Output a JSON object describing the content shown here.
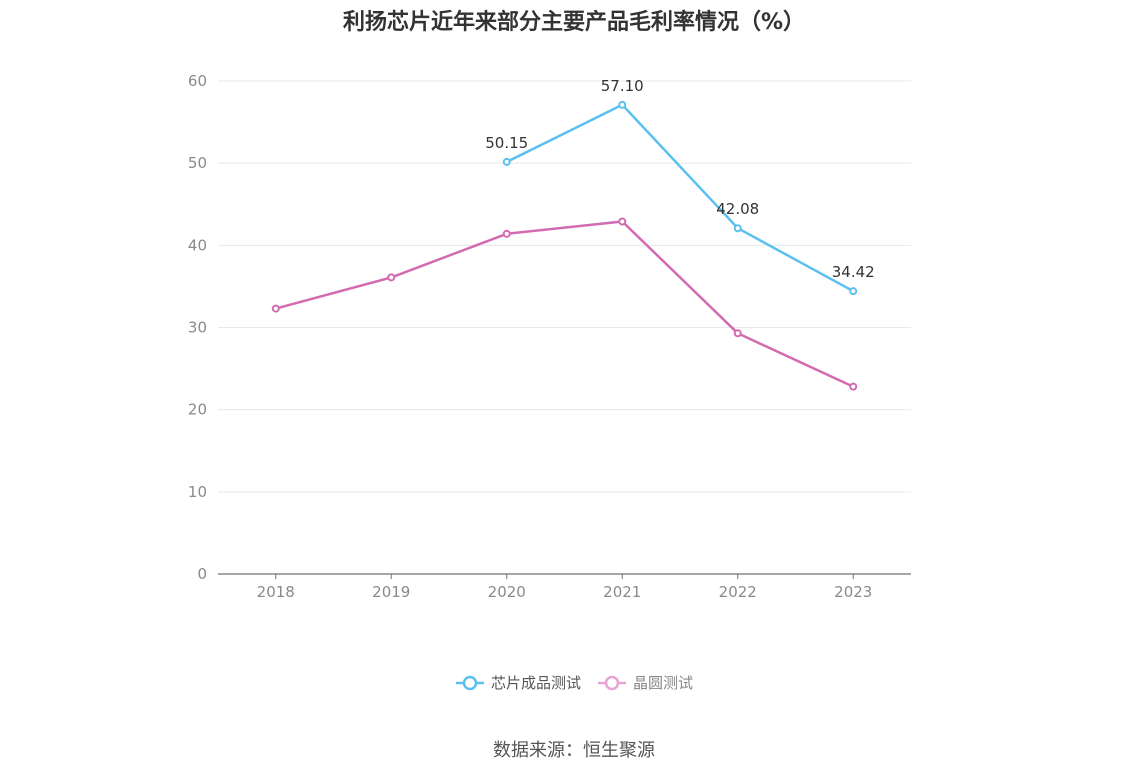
{
  "chart_data": {
    "type": "line",
    "title": "利扬芯片近年来部分主要产品毛利率情况（%）",
    "categories": [
      "2018",
      "2019",
      "2020",
      "2021",
      "2022",
      "2023"
    ],
    "ylim": [
      0,
      60
    ],
    "yticks": [
      0,
      10,
      20,
      30,
      40,
      50,
      60
    ],
    "grid": true,
    "legend_position": "bottom",
    "series": [
      {
        "name": "芯片成品测试",
        "color": "#5bc0f0",
        "values": [
          null,
          null,
          50.15,
          57.1,
          42.08,
          34.42
        ],
        "labels": [
          "",
          "",
          "50.15",
          "57.10",
          "42.08",
          "34.42"
        ]
      },
      {
        "name": "晶圆测试",
        "color": "#d36bb2",
        "values": [
          32.3,
          36.1,
          41.4,
          42.9,
          29.3,
          22.8
        ]
      }
    ]
  },
  "source": "数据来源：恒生聚源"
}
